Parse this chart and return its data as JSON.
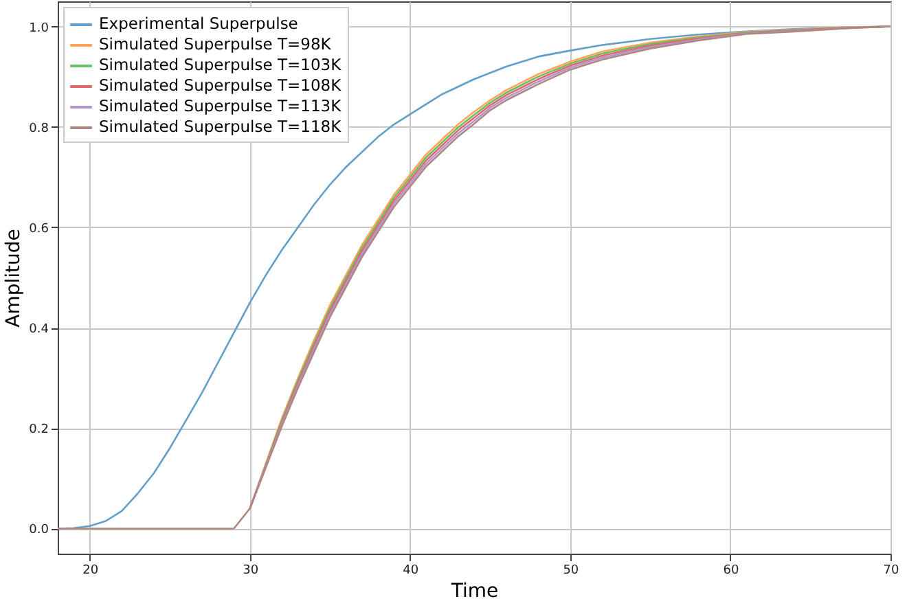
{
  "chart_data": {
    "type": "line",
    "xlabel": "Time",
    "ylabel": "Amplitude",
    "xlim": [
      18,
      70
    ],
    "ylim": [
      -0.05,
      1.05
    ],
    "xticks": [
      20,
      30,
      40,
      50,
      60,
      70
    ],
    "yticks": [
      {
        "value": 0,
        "label": "0.0"
      },
      {
        "value": 0.2,
        "label": "0.2"
      },
      {
        "value": 0.4,
        "label": "0.4"
      },
      {
        "value": 0.6,
        "label": "0.6"
      },
      {
        "value": 0.8,
        "label": "0.8"
      },
      {
        "value": 1,
        "label": "1.0"
      }
    ],
    "grid": true,
    "legend": "top left",
    "series": [
      {
        "name": "Experimental Superpulse",
        "color": "#629fca",
        "x": [
          18,
          19,
          20,
          21,
          22,
          23,
          24,
          25,
          26,
          27,
          28,
          29,
          30,
          31,
          32,
          33,
          34,
          35,
          36,
          37,
          38,
          39,
          40,
          42,
          44,
          46,
          48,
          50,
          52,
          55,
          58,
          61,
          64,
          67,
          70
        ],
        "values": [
          0,
          0.001,
          0.005,
          0.015,
          0.035,
          0.07,
          0.11,
          0.16,
          0.215,
          0.27,
          0.33,
          0.39,
          0.45,
          0.505,
          0.555,
          0.6,
          0.645,
          0.685,
          0.72,
          0.75,
          0.78,
          0.805,
          0.825,
          0.865,
          0.895,
          0.92,
          0.94,
          0.952,
          0.963,
          0.975,
          0.984,
          0.99,
          0.995,
          0.998,
          1.0
        ]
      },
      {
        "name": "Simulated Superpulse T=98K",
        "color": "#ffa556",
        "x": [
          30,
          31,
          32,
          33,
          34,
          35,
          36,
          37,
          38,
          39,
          40,
          41,
          42,
          43,
          44,
          45,
          46,
          48,
          50,
          52,
          55,
          58,
          61,
          64,
          67,
          70
        ],
        "values": [
          0.04,
          0.13,
          0.22,
          0.3,
          0.375,
          0.445,
          0.505,
          0.565,
          0.615,
          0.665,
          0.705,
          0.745,
          0.775,
          0.805,
          0.83,
          0.853,
          0.873,
          0.905,
          0.93,
          0.95,
          0.968,
          0.98,
          0.989,
          0.994,
          0.998,
          1.0
        ]
      },
      {
        "name": "Simulated Superpulse T=103K",
        "color": "#6bbc6b",
        "x": [
          30,
          31,
          32,
          33,
          34,
          35,
          36,
          37,
          38,
          39,
          40,
          41,
          42,
          43,
          44,
          45,
          46,
          48,
          50,
          52,
          55,
          58,
          61,
          64,
          67,
          70
        ],
        "values": [
          0.04,
          0.128,
          0.216,
          0.295,
          0.369,
          0.439,
          0.499,
          0.559,
          0.609,
          0.659,
          0.699,
          0.739,
          0.769,
          0.799,
          0.824,
          0.848,
          0.868,
          0.9,
          0.926,
          0.946,
          0.965,
          0.978,
          0.988,
          0.993,
          0.997,
          1.0
        ]
      },
      {
        "name": "Simulated Superpulse T=108K",
        "color": "#e26768",
        "x": [
          30,
          31,
          32,
          33,
          34,
          35,
          36,
          37,
          38,
          39,
          40,
          41,
          42,
          43,
          44,
          45,
          46,
          48,
          50,
          52,
          55,
          58,
          61,
          64,
          67,
          70
        ],
        "values": [
          0.04,
          0.126,
          0.212,
          0.29,
          0.363,
          0.433,
          0.493,
          0.553,
          0.603,
          0.653,
          0.693,
          0.733,
          0.763,
          0.793,
          0.818,
          0.843,
          0.863,
          0.895,
          0.922,
          0.942,
          0.962,
          0.976,
          0.987,
          0.992,
          0.997,
          1.0
        ]
      },
      {
        "name": "Simulated Superpulse T=113K",
        "color": "#b494d0",
        "x": [
          30,
          31,
          32,
          33,
          34,
          35,
          36,
          37,
          38,
          39,
          40,
          41,
          42,
          43,
          44,
          45,
          46,
          48,
          50,
          52,
          55,
          58,
          61,
          64,
          67,
          70
        ],
        "values": [
          0.04,
          0.124,
          0.208,
          0.285,
          0.357,
          0.427,
          0.487,
          0.547,
          0.597,
          0.647,
          0.687,
          0.727,
          0.757,
          0.787,
          0.812,
          0.838,
          0.858,
          0.89,
          0.918,
          0.938,
          0.959,
          0.974,
          0.986,
          0.991,
          0.996,
          1.0
        ]
      },
      {
        "name": "Simulated Superpulse T=118K",
        "color": "#ae8880",
        "x": [
          18,
          29,
          30,
          31,
          32,
          33,
          34,
          35,
          36,
          37,
          38,
          39,
          40,
          41,
          42,
          43,
          44,
          45,
          46,
          48,
          50,
          52,
          55,
          58,
          61,
          64,
          67,
          70
        ],
        "values": [
          0,
          0,
          0.04,
          0.122,
          0.204,
          0.28,
          0.351,
          0.421,
          0.481,
          0.541,
          0.591,
          0.641,
          0.681,
          0.721,
          0.751,
          0.781,
          0.806,
          0.833,
          0.853,
          0.885,
          0.914,
          0.934,
          0.956,
          0.972,
          0.985,
          0.99,
          0.996,
          1.0
        ]
      }
    ]
  }
}
